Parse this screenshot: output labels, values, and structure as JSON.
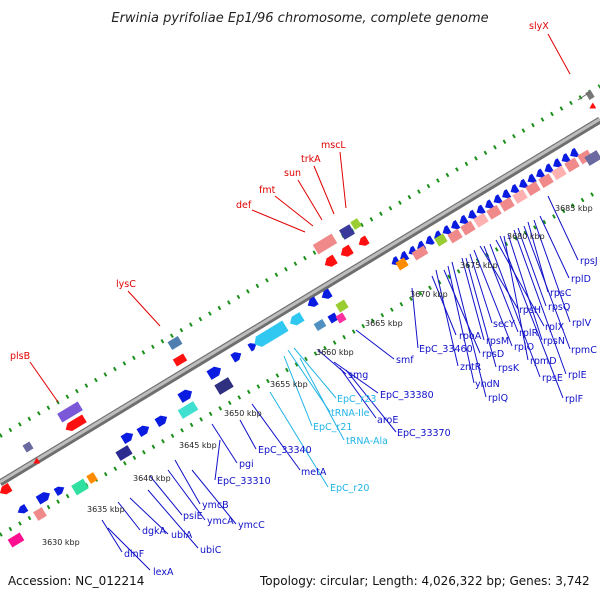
{
  "title": "Erwinia pyrifoliae Ep1/96 chromosome, complete genome",
  "footer": {
    "accession": "Accession: NC_012214",
    "summary": "Topology: circular; Length: 4,026,322 bp; Genes: 3,742"
  },
  "colors": {
    "backbone": "#8a8a8a",
    "dots": "#1a8f1a",
    "red_label": "#e00000",
    "blue_label": "#1010c8",
    "cyan_label": "#20b4e6",
    "gene_blue": "#0a1ce0",
    "gene_red": "#ff1010",
    "gene_pink": "#f08a8a"
  },
  "position_labels": [
    "3630 kbp",
    "3635 kbp",
    "3640 kbp",
    "3645 kbp",
    "3650 kbp",
    "3655 kbp",
    "3660 kbp",
    "3665 kbp",
    "3670 kbp",
    "3675 kbp",
    "3680 kbp",
    "3685 kbp"
  ],
  "gene_labels": {
    "red": [
      "plsB",
      "lysC",
      "def",
      "fmt",
      "sun",
      "trkA",
      "mscL",
      "slyX"
    ],
    "blue": [
      "dinF",
      "lexA",
      "dgkA",
      "ubiA",
      "ubiC",
      "psiE",
      "ymcA",
      "ymcB",
      "ymcC",
      "pgi",
      "EpC_33310",
      "EpC_33340",
      "metA",
      "smg",
      "smf",
      "EpC_33380",
      "aroE",
      "EpC_33370",
      "EpC_33460",
      "rpoA",
      "zntR",
      "rpsD",
      "yhdN",
      "rplQ",
      "rpsM",
      "rpsK",
      "secY",
      "rplO",
      "rpsH",
      "rplR",
      "rpsE",
      "rplX",
      "rplF",
      "rpmD",
      "rpsN",
      "rplE",
      "rpsQ",
      "rpmC",
      "rpsC",
      "rplV",
      "rplD",
      "rpsJ"
    ],
    "cyan": [
      "EpC_r23",
      "tRNA-Ile",
      "EpC_r21",
      "tRNA-Ala",
      "EpC_r20"
    ]
  }
}
